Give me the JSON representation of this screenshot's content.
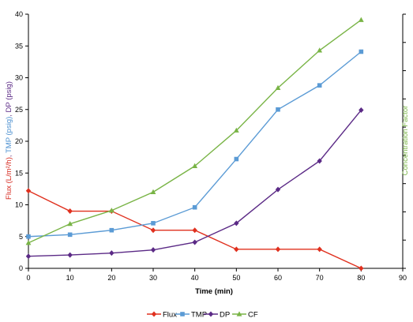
{
  "chart_data": {
    "type": "line",
    "title": "",
    "xlabel": "Time (min)",
    "ylabel": {
      "parts": [
        {
          "text": "Flux (L/m²/h)",
          "color": "#d6271d"
        },
        {
          "text": ", ",
          "color": "#7a4f8f"
        },
        {
          "text": "TMP (psig)",
          "color": "#4a8fd0"
        },
        {
          "text": ", ",
          "color": "#7a4f8f"
        },
        {
          "text": "DP (psig)",
          "color": "#5b2a86"
        }
      ]
    },
    "y2label": "Concentration Factor",
    "y2label_color": "#79b446",
    "xlim": [
      0,
      90
    ],
    "ylim": [
      0,
      40
    ],
    "xticks": [
      0,
      10,
      20,
      30,
      40,
      50,
      60,
      70,
      80,
      90
    ],
    "yticks": [
      0,
      5,
      10,
      15,
      20,
      25,
      30,
      35,
      40
    ],
    "grid": false,
    "legend_position": "bottom",
    "series": [
      {
        "name": "Flux",
        "color": "#e0301e",
        "marker": "diamond",
        "axis": "left",
        "x": [
          0,
          10,
          20,
          30,
          40,
          50,
          60,
          70,
          80
        ],
        "values": [
          12.2,
          9.0,
          9.0,
          6.0,
          6.0,
          3.0,
          3.0,
          3.0,
          0.0
        ]
      },
      {
        "name": "TMP",
        "color": "#5b9bd5",
        "marker": "square",
        "axis": "left",
        "x": [
          0,
          10,
          20,
          30,
          40,
          50,
          60,
          70,
          80
        ],
        "values": [
          5.0,
          5.3,
          6.0,
          7.1,
          9.6,
          17.2,
          25.0,
          28.8,
          34.1
        ]
      },
      {
        "name": "DP",
        "color": "#5b2a86",
        "marker": "diamond",
        "axis": "left",
        "x": [
          0,
          10,
          20,
          30,
          40,
          50,
          60,
          70,
          80
        ],
        "values": [
          1.9,
          2.1,
          2.4,
          2.9,
          4.1,
          7.1,
          12.4,
          16.9,
          24.9
        ]
      },
      {
        "name": "CF",
        "color": "#79b446",
        "marker": "triangle",
        "axis": "left",
        "x": [
          0,
          10,
          20,
          30,
          40,
          50,
          60,
          70,
          80
        ],
        "values": [
          4.0,
          7.0,
          9.1,
          12.0,
          16.1,
          21.7,
          28.4,
          34.3,
          39.1
        ]
      }
    ]
  }
}
